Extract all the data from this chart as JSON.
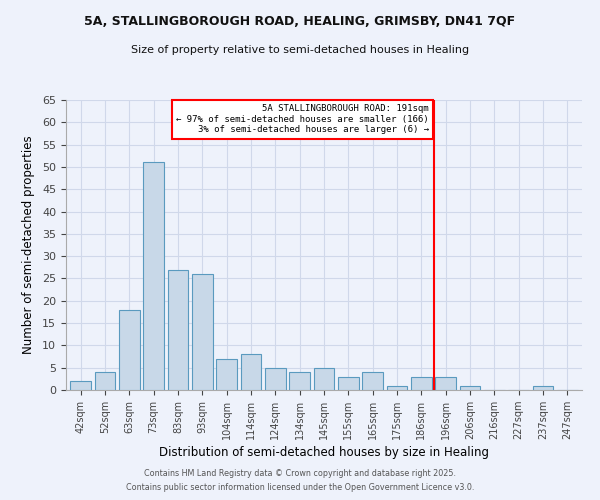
{
  "title1": "5A, STALLINGBOROUGH ROAD, HEALING, GRIMSBY, DN41 7QF",
  "title2": "Size of property relative to semi-detached houses in Healing",
  "xlabel": "Distribution of semi-detached houses by size in Healing",
  "ylabel": "Number of semi-detached properties",
  "bin_labels": [
    "42sqm",
    "52sqm",
    "63sqm",
    "73sqm",
    "83sqm",
    "93sqm",
    "104sqm",
    "114sqm",
    "124sqm",
    "134sqm",
    "145sqm",
    "155sqm",
    "165sqm",
    "175sqm",
    "186sqm",
    "196sqm",
    "206sqm",
    "216sqm",
    "227sqm",
    "237sqm",
    "247sqm"
  ],
  "bar_values": [
    2,
    4,
    18,
    51,
    27,
    26,
    7,
    8,
    5,
    4,
    5,
    3,
    4,
    1,
    3,
    3,
    1,
    0,
    0,
    1,
    0
  ],
  "bar_color": "#c8d8e8",
  "bar_edge_color": "#5a9abf",
  "ylim": [
    0,
    65
  ],
  "yticks": [
    0,
    5,
    10,
    15,
    20,
    25,
    30,
    35,
    40,
    45,
    50,
    55,
    60,
    65
  ],
  "red_line_x": 14.5,
  "annotation_title": "5A STALLINGBOROUGH ROAD: 191sqm",
  "annotation_line1": "← 97% of semi-detached houses are smaller (166)",
  "annotation_line2": "3% of semi-detached houses are larger (6) →",
  "footer1": "Contains HM Land Registry data © Crown copyright and database right 2025.",
  "footer2": "Contains public sector information licensed under the Open Government Licence v3.0.",
  "bg_color": "#eef2fb",
  "grid_color": "#d0d8ea"
}
